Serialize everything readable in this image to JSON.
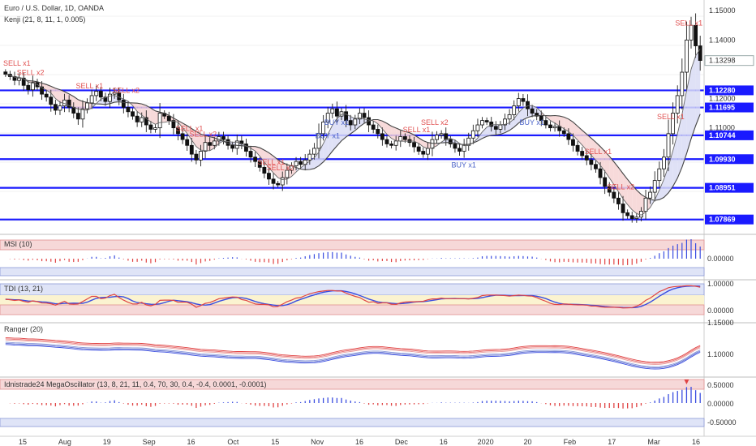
{
  "header": {
    "symbol_title": "Euro / U.S. Dollar, 1D, OANDA",
    "indicator": "Kenji (21, 8, 11, 1, 0.005)"
  },
  "price_axis": {
    "ticks": [
      "1.15000",
      "1.14000",
      "1.13298",
      "1.12280",
      "1.12000",
      "1.11695",
      "1.11000",
      "1.10744",
      "1.09930",
      "1.08951",
      "1.07869"
    ],
    "highlight_levels": [
      "1.12280",
      "1.11695",
      "1.10744",
      "1.09930",
      "1.08951",
      "1.07869"
    ],
    "current_label": "1.13298"
  },
  "time_axis": {
    "labels": [
      "15",
      "Aug",
      "19",
      "Sep",
      "16",
      "Oct",
      "15",
      "Nov",
      "16",
      "Dec",
      "16",
      "2020",
      "20",
      "Feb",
      "17",
      "Mar",
      "16"
    ]
  },
  "signals": {
    "sell": [
      "SELL x1",
      "SELL x2",
      "SELL x1",
      "SELL x2",
      "SELL x1",
      "SELL x2",
      "SELL x1",
      "SELL x2",
      "SELL x1",
      "SELL x2",
      "SELL x1",
      "SELL x2",
      "SELL x1",
      "SELL x1"
    ],
    "buy": [
      "BUY x1",
      "BUY x1",
      "BUY x1",
      "BUY x1"
    ]
  },
  "panels": {
    "msi": {
      "title": "MSI (10)",
      "ticks": [
        "0.00000"
      ]
    },
    "tdi": {
      "title": "TDI (13, 21)",
      "ticks": [
        "1.00000",
        "0.00000"
      ]
    },
    "ranger": {
      "title": "Ranger (20)",
      "ticks": [
        "1.15000",
        "1.10000"
      ]
    },
    "mega": {
      "title": "Idnistrade24 MegaOscillator (13, 8, 21, 11, 0.4, 70, 30, 0.4, -0.4, 0.0001, -0.0001)",
      "ticks": [
        "0.50000",
        "0.00000",
        "-0.50000"
      ]
    }
  },
  "chart_data": {
    "type": "candlestick",
    "title": "Euro / U.S. Dollar, 1D, OANDA",
    "x_start": "2019-07-01",
    "x_end": "2020-03-12",
    "ylim": [
      1.075,
      1.152
    ],
    "horizontal_levels": [
      1.1228,
      1.11695,
      1.10744,
      1.0993,
      1.08951,
      1.07869
    ],
    "close_series": [
      1.1283,
      1.1275,
      1.1262,
      1.127,
      1.1245,
      1.123,
      1.1255,
      1.124,
      1.1215,
      1.1205,
      1.118,
      1.116,
      1.1175,
      1.1195,
      1.117,
      1.115,
      1.113,
      1.1165,
      1.1185,
      1.121,
      1.1225,
      1.1205,
      1.119,
      1.1215,
      1.122,
      1.1195,
      1.117,
      1.1155,
      1.114,
      1.112,
      1.1135,
      1.111,
      1.1095,
      1.11,
      1.115,
      1.114,
      1.1125,
      1.11,
      1.108,
      1.106,
      1.104,
      1.101,
      1.099,
      1.102,
      1.105,
      1.104,
      1.1055,
      1.107,
      1.106,
      1.104,
      1.103,
      1.1055,
      1.1045,
      1.102,
      1.1,
      1.0985,
      1.0965,
      1.0945,
      1.0925,
      1.091,
      1.0905,
      1.093,
      1.0955,
      1.097,
      1.0985,
      1.0975,
      1.099,
      1.101,
      1.103,
      1.108,
      1.112,
      1.115,
      1.1165,
      1.114,
      1.1155,
      1.1125,
      1.111,
      1.113,
      1.115,
      1.1135,
      1.111,
      1.1095,
      1.108,
      1.106,
      1.1045,
      1.104,
      1.1055,
      1.107,
      1.106,
      1.105,
      1.1035,
      1.102,
      1.101,
      1.103,
      1.106,
      1.1075,
      1.108,
      1.106,
      1.1045,
      1.103,
      1.102,
      1.104,
      1.1065,
      1.109,
      1.111,
      1.1125,
      1.112,
      1.1105,
      1.1095,
      1.111,
      1.113,
      1.1145,
      1.1175,
      1.12,
      1.119,
      1.1165,
      1.115,
      1.114,
      1.1125,
      1.111,
      1.11,
      1.1105,
      1.109,
      1.108,
      1.106,
      1.104,
      1.102,
      1.1005,
      1.099,
      1.0975,
      1.096,
      1.093,
      1.09,
      1.088,
      1.086,
      1.084,
      1.081,
      1.08,
      1.079,
      1.0795,
      1.0815,
      1.086,
      1.088,
      1.092,
      1.096,
      1.1,
      1.108,
      1.115,
      1.121,
      1.129,
      1.14,
      1.145,
      1.138,
      1.133
    ]
  }
}
